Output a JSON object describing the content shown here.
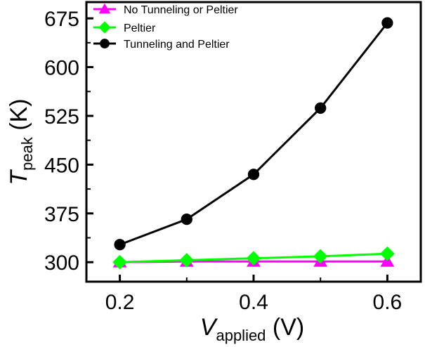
{
  "chart_data": {
    "type": "line",
    "x": [
      0.2,
      0.3,
      0.4,
      0.5,
      0.6
    ],
    "xlim": [
      0.15,
      0.65
    ],
    "ylim": [
      270,
      700
    ],
    "xticks": [
      0.2,
      0.4,
      0.6
    ],
    "yticks": [
      300,
      375,
      450,
      525,
      600,
      675
    ],
    "xtick_labels": [
      "0.2",
      "0.4",
      "0.6"
    ],
    "ytick_labels": [
      "300",
      "375",
      "450",
      "525",
      "600",
      "675"
    ],
    "xlabel": {
      "symbol": "V",
      "subscript": "applied",
      "unit": " (V)"
    },
    "ylabel": {
      "symbol": "T",
      "subscript": "peak",
      "unit": " (K)"
    },
    "legend_position": "top-left",
    "series": [
      {
        "name": "No Tunneling or Peltier",
        "values": [
          300,
          301,
          301,
          301,
          301
        ],
        "color": "#ff00ff",
        "marker": "triangle"
      },
      {
        "name": "Peltier",
        "values": [
          300,
          303,
          306,
          309,
          313
        ],
        "color": "#00ff00",
        "marker": "diamond"
      },
      {
        "name": "Tunneling and Peltier",
        "values": [
          327,
          366,
          435,
          537,
          668
        ],
        "color": "#000000",
        "marker": "circle"
      }
    ]
  }
}
